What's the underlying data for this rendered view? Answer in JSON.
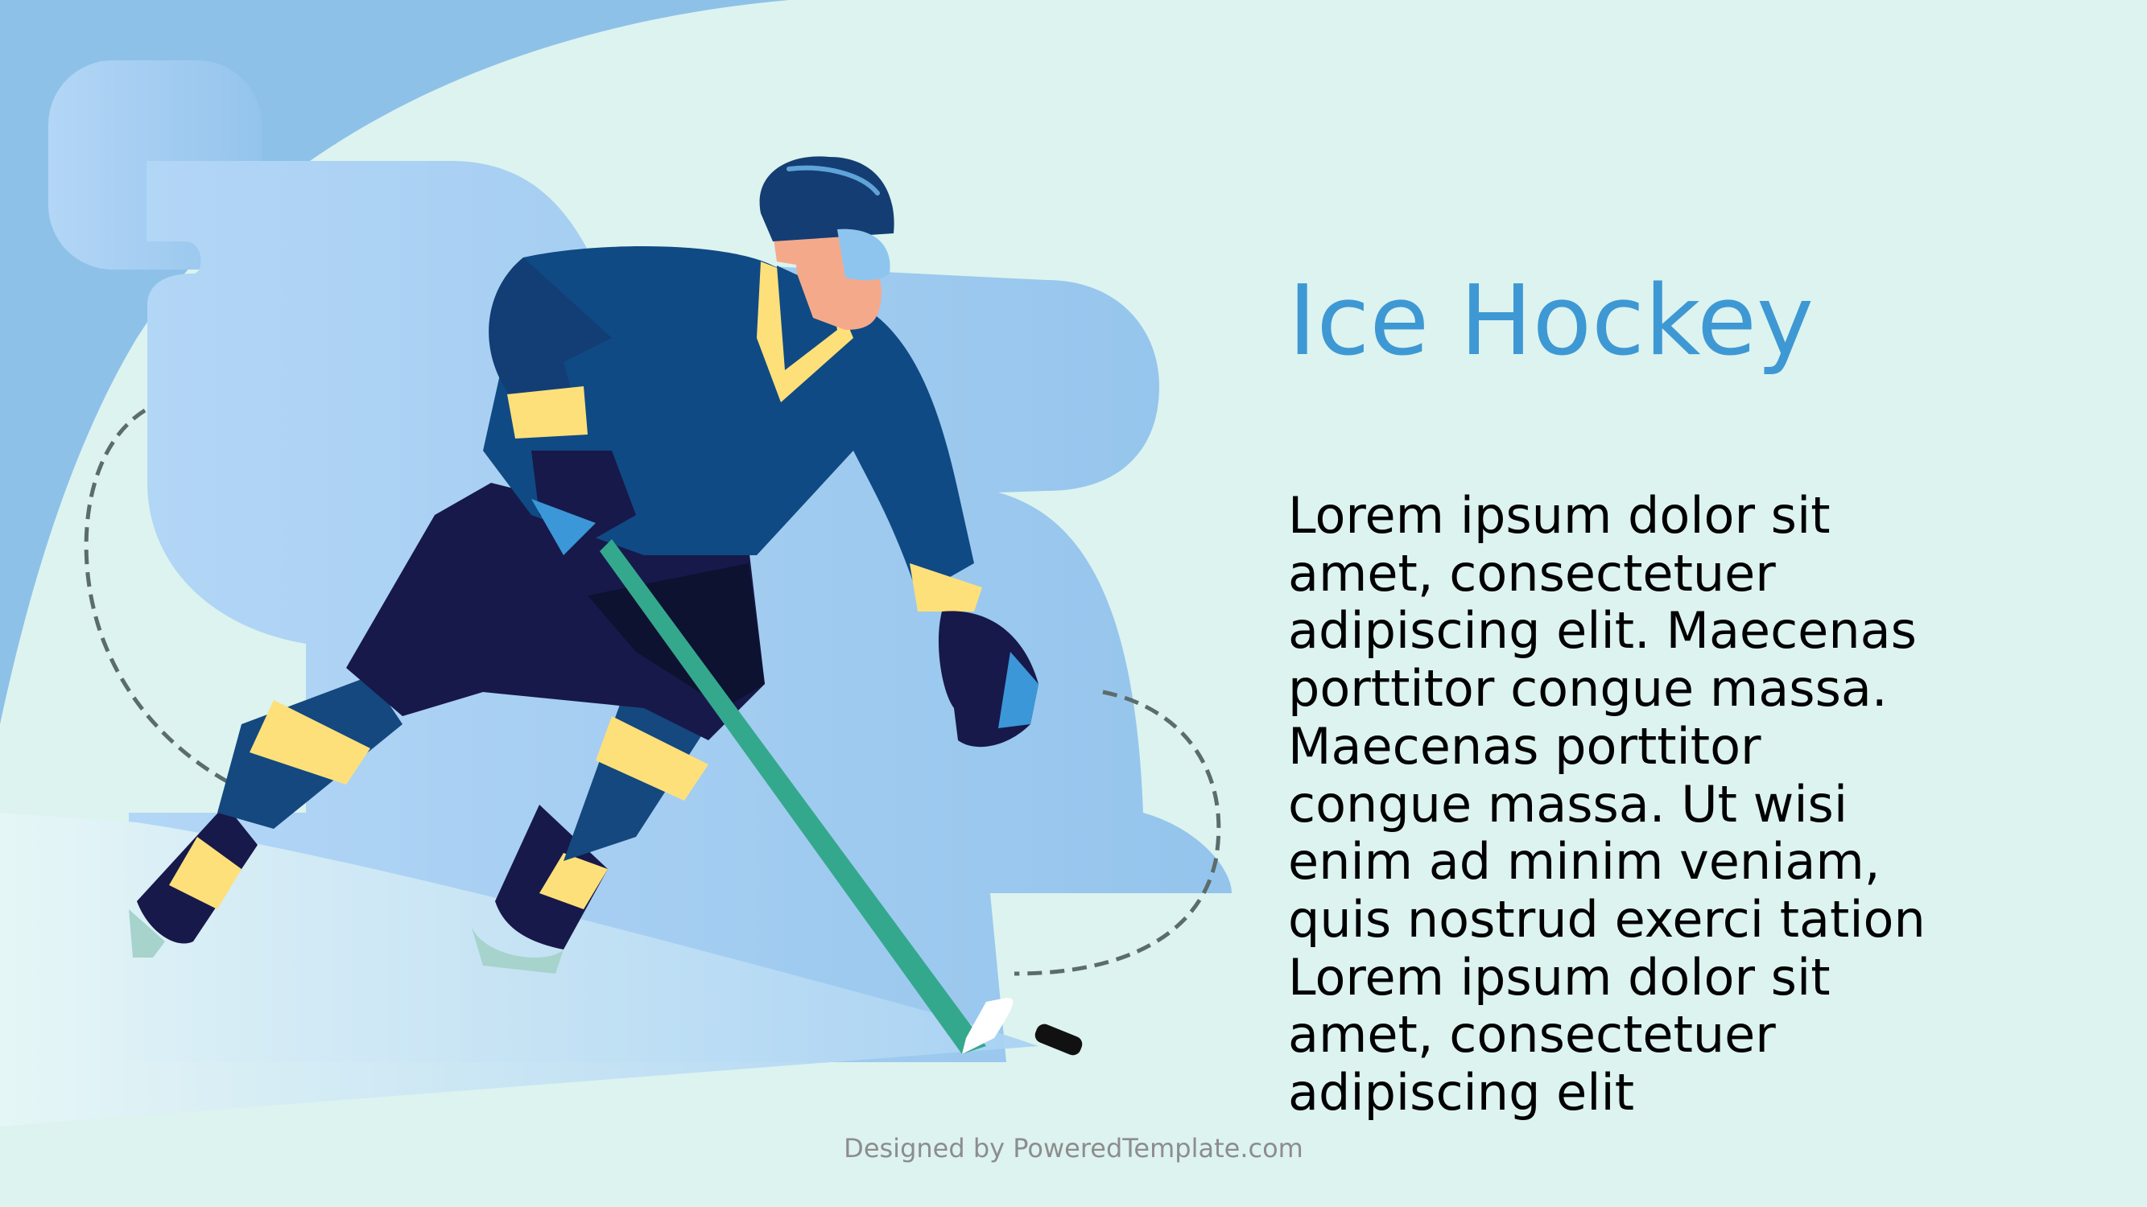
{
  "slide": {
    "title": "Ice Hockey",
    "body": "Lorem ipsum dolor sit\namet, consectetuer\nadipiscing elit. Maecenas\nporttitor congue massa.\nMaecenas porttitor\ncongue massa. Ut wisi\nenim ad minim veniam,\nquis nostrud exerci tation\nLorem ipsum dolor sit\namet, consectetuer\nadipiscing elit",
    "footer": "Designed by PoweredTemplate.com"
  },
  "illustration": {
    "icon": "hockey-player-illustration",
    "colors": {
      "background": "#dcf3ef",
      "accent": "#3e98d3",
      "jersey": "#0f4a84",
      "pants": "#17194a",
      "stripes": "#fde07a",
      "stick": "#34a88d"
    }
  }
}
